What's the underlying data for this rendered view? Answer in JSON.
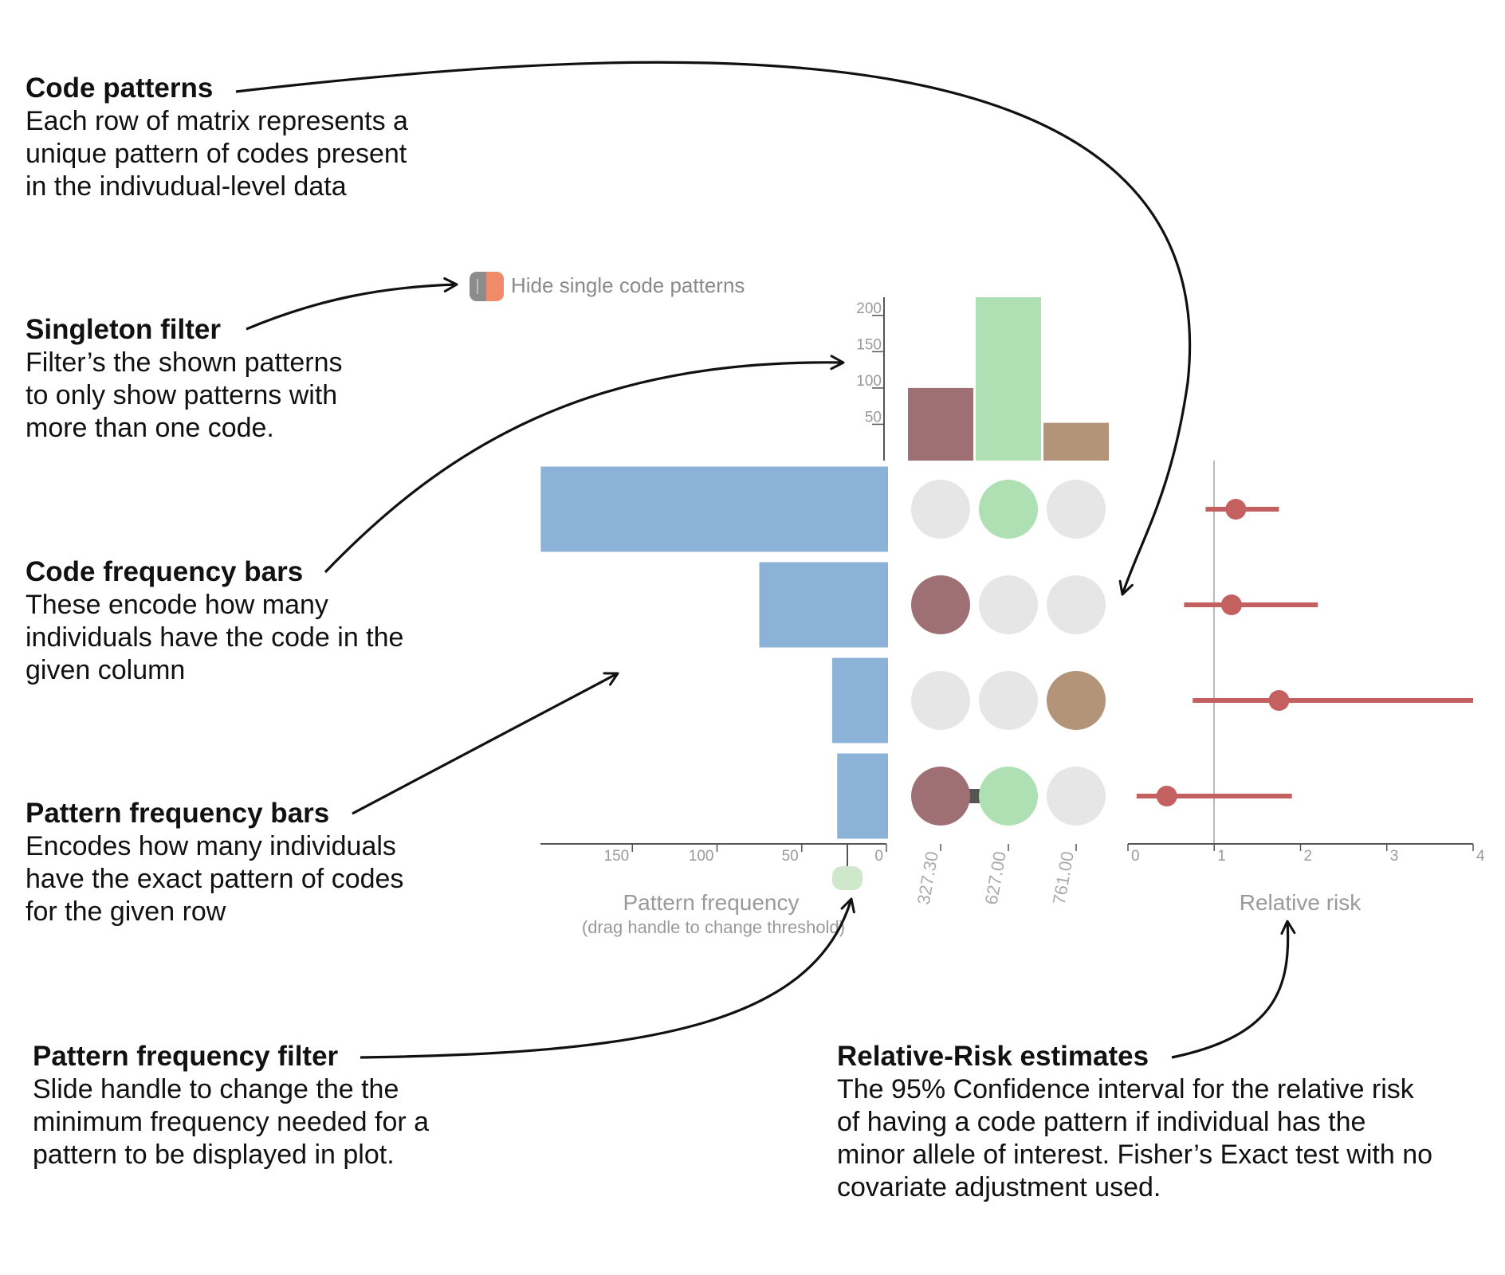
{
  "annotations": {
    "code_patterns": {
      "title": "Code patterns",
      "lines": [
        "Each row of matrix represents a",
        "unique pattern of codes present",
        "in the indivudual-level data"
      ]
    },
    "singleton_filter": {
      "title": "Singleton filter",
      "lines": [
        "Filter’s the shown patterns",
        "to only show patterns with",
        "more than one code."
      ]
    },
    "code_frequency_bars": {
      "title": "Code frequency bars",
      "lines": [
        "These encode how many",
        "individuals have the code in the",
        "given column"
      ]
    },
    "pattern_frequency_bars": {
      "title": "Pattern frequency bars",
      "lines": [
        "Encodes how many individuals",
        "have the exact pattern of codes",
        "for the given row"
      ]
    },
    "pattern_frequency_filter": {
      "title": "Pattern frequency filter",
      "lines": [
        "Slide handle to change the the",
        "minimum frequency needed for a",
        "pattern to be displayed in plot."
      ]
    },
    "relative_risk_estimates": {
      "title": "Relative-Risk estimates",
      "lines": [
        "The 95% Confidence interval for the relative risk",
        "of having a code pattern if individual has the",
        "minor allele of interest. Fisher’s Exact test with no",
        "covariate adjustment used."
      ]
    }
  },
  "singleton_toggle": {
    "label": "Hide single code patterns",
    "state": "on"
  },
  "colors": {
    "code_1": "#9e7074",
    "code_2": "#afe0b3",
    "code_3": "#b39479",
    "pattern_bar": "#8cb2d8",
    "empty_cell": "#e6e6e6",
    "ci": "#c46060",
    "axis": "#555555",
    "axis_label": "#9a9a9a",
    "toggle_on": "#ef8a6a",
    "handle": "#cfe8cc"
  },
  "chart_data": {
    "type": "upset",
    "codes": [
      {
        "name": "327.30",
        "count": 100
      },
      {
        "name": "627.00",
        "count": 225
      },
      {
        "name": "761.00",
        "count": 52
      }
    ],
    "code_axis_ticks": [
      "200",
      "150",
      "100",
      "50"
    ],
    "code_axis_range": [
      0,
      225
    ],
    "patterns": [
      {
        "codes": [
          "627.00"
        ],
        "frequency": 205,
        "rr": 1.25,
        "ci": [
          0.9,
          1.75
        ]
      },
      {
        "codes": [
          "327.30"
        ],
        "frequency": 76,
        "rr": 1.2,
        "ci": [
          0.65,
          2.2
        ]
      },
      {
        "codes": [
          "761.00"
        ],
        "frequency": 33,
        "rr": 1.75,
        "ci": [
          0.75,
          4.0
        ]
      },
      {
        "codes": [
          "327.30",
          "627.00"
        ],
        "frequency": 30,
        "rr": 0.45,
        "ci": [
          0.1,
          1.9
        ]
      }
    ],
    "pattern_axis": {
      "ticks": [
        "150",
        "100",
        "50",
        "0"
      ],
      "title": "Pattern frequency",
      "subtitle": "(drag handle to change threshold)",
      "range": [
        0,
        205
      ],
      "threshold": 20
    },
    "rr_axis": {
      "ticks": [
        "0",
        "1",
        "2",
        "3",
        "4"
      ],
      "title": "Relative risk",
      "range": [
        0,
        4
      ],
      "reference_line": 1
    }
  }
}
